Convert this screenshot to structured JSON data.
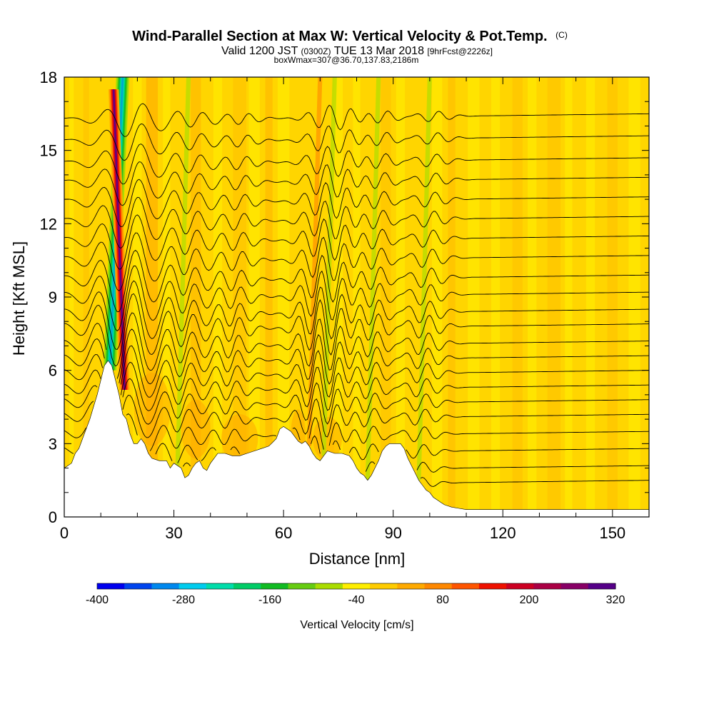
{
  "chart_data": {
    "type": "heatmap",
    "title": "Wind-Parallel Section at Max W: Vertical Velocity & Pot.Temp.",
    "title_mark": "(C)",
    "subtitle": {
      "prefix": "Valid 1200 JST",
      "utc": "(0300Z)",
      "date": "TUE 13 Mar 2018",
      "forecast": "[9hrFcst@2226z]"
    },
    "subtitle2": "boxWmax=307@36.70,137.83,2186m",
    "xlabel": "Distance [nm]",
    "ylabel": "Height [Kft MSL]",
    "xlim": [
      0,
      160
    ],
    "ylim": [
      0,
      18
    ],
    "x_ticks": [
      0,
      30,
      60,
      90,
      120,
      150
    ],
    "y_ticks": [
      0,
      3,
      6,
      9,
      12,
      15,
      18
    ],
    "colorbar": {
      "label": "Vertical Velocity [cm/s]",
      "tick_values": [
        -400,
        -280,
        -160,
        -40,
        80,
        200,
        320
      ],
      "tick_labels": [
        "-400",
        "-280",
        "-160",
        "-40",
        "80",
        "200",
        "320"
      ],
      "levels": [
        -400,
        -360,
        -320,
        -280,
        -240,
        -200,
        -160,
        -120,
        -80,
        -40,
        0,
        40,
        80,
        120,
        160,
        200,
        240,
        280,
        320
      ],
      "colors": [
        "#0000ee",
        "#0044ee",
        "#0088ee",
        "#00ccee",
        "#00ddaa",
        "#00cc66",
        "#11bb22",
        "#66cc11",
        "#aadd00",
        "#ffee00",
        "#ffcc00",
        "#ffaa00",
        "#ff8800",
        "#ff5500",
        "#ee1100",
        "#cc0022",
        "#aa0044",
        "#880066",
        "#550088"
      ]
    },
    "background_band": "#ffe600",
    "terrain": [
      [
        0,
        2
      ],
      [
        2,
        2.2
      ],
      [
        3,
        2.6
      ],
      [
        4,
        2.8
      ],
      [
        5,
        3.2
      ],
      [
        6,
        3.6
      ],
      [
        7,
        4.0
      ],
      [
        8,
        4.5
      ],
      [
        9,
        5.0
      ],
      [
        10,
        5.6
      ],
      [
        11,
        6.2
      ],
      [
        12,
        6.4
      ],
      [
        13,
        6.2
      ],
      [
        14,
        5.6
      ],
      [
        15,
        5.0
      ],
      [
        16,
        4.2
      ],
      [
        17,
        4.0
      ],
      [
        18,
        3.4
      ],
      [
        19,
        3.0
      ],
      [
        20,
        3.0
      ],
      [
        21,
        3.2
      ],
      [
        22,
        3.0
      ],
      [
        23,
        2.6
      ],
      [
        24,
        2.4
      ],
      [
        26,
        2.3
      ],
      [
        28,
        2.3
      ],
      [
        29,
        2.0
      ],
      [
        30,
        2.2
      ],
      [
        32,
        2.0
      ],
      [
        33,
        1.6
      ],
      [
        34,
        1.7
      ],
      [
        35,
        2.0
      ],
      [
        36,
        2.2
      ],
      [
        37,
        2.3
      ],
      [
        38,
        2.0
      ],
      [
        39,
        1.9
      ],
      [
        40,
        2.2
      ],
      [
        41,
        2.4
      ],
      [
        42,
        2.6
      ],
      [
        44,
        2.6
      ],
      [
        46,
        2.5
      ],
      [
        48,
        2.5
      ],
      [
        50,
        2.6
      ],
      [
        52,
        2.7
      ],
      [
        54,
        2.8
      ],
      [
        56,
        2.9
      ],
      [
        58,
        3.2
      ],
      [
        59,
        3.6
      ],
      [
        60,
        3.7
      ],
      [
        61,
        3.6
      ],
      [
        62,
        3.5
      ],
      [
        63,
        3.3
      ],
      [
        64,
        3.1
      ],
      [
        65,
        3.0
      ],
      [
        66,
        3.1
      ],
      [
        67,
        2.9
      ],
      [
        68,
        2.6
      ],
      [
        69,
        2.4
      ],
      [
        70,
        2.3
      ],
      [
        71,
        2.5
      ],
      [
        72,
        2.7
      ],
      [
        74,
        2.6
      ],
      [
        76,
        2.6
      ],
      [
        78,
        2.5
      ],
      [
        79,
        2.3
      ],
      [
        80,
        2.0
      ],
      [
        81,
        1.8
      ],
      [
        82,
        1.7
      ],
      [
        83,
        1.5
      ],
      [
        84,
        1.7
      ],
      [
        85,
        2.0
      ],
      [
        86,
        2.3
      ],
      [
        87,
        2.7
      ],
      [
        88,
        2.9
      ],
      [
        89,
        3.0
      ],
      [
        90,
        3.0
      ],
      [
        91,
        3.0
      ],
      [
        92,
        3.0
      ],
      [
        93,
        2.8
      ],
      [
        94,
        2.4
      ],
      [
        95,
        2.1
      ],
      [
        96,
        1.8
      ],
      [
        97,
        1.5
      ],
      [
        98,
        1.3
      ],
      [
        99,
        1.1
      ],
      [
        100,
        1.0
      ],
      [
        101,
        0.8
      ],
      [
        102,
        0.7
      ],
      [
        103,
        0.6
      ],
      [
        104,
        0.5
      ],
      [
        105,
        0.45
      ],
      [
        106,
        0.4
      ],
      [
        108,
        0.35
      ],
      [
        110,
        0.3
      ],
      [
        112,
        0.3
      ],
      [
        115,
        0.3
      ],
      [
        120,
        0.3
      ],
      [
        130,
        0.3
      ],
      [
        140,
        0.3
      ],
      [
        150,
        0.3
      ],
      [
        160,
        0.3
      ]
    ],
    "updraft_core": {
      "x_bottom": 16.5,
      "x_top": 13.5,
      "y_bottom": 5.2,
      "y_top": 17.5,
      "max_value": 307
    },
    "downdraft_core": {
      "x_bottom": 12.5,
      "x_top": 16.0,
      "y_bottom": 6.0,
      "y_top": 18.0,
      "min_value": -240
    },
    "wave_bands": [
      {
        "x": 31,
        "type": "downdraft"
      },
      {
        "x": 67,
        "type": "updraft"
      },
      {
        "x": 71,
        "type": "downdraft"
      },
      {
        "x": 83,
        "type": "downdraft"
      },
      {
        "x": 97,
        "type": "downdraft"
      }
    ],
    "theta_contours": {
      "count": 22,
      "base_heights": [
        1.2,
        1.8,
        2.5,
        3.2,
        3.9,
        4.5,
        5.1,
        5.7,
        6.3,
        6.9,
        7.6,
        8.2,
        8.9,
        9.6,
        10.4,
        11.2,
        12.0,
        12.8,
        13.6,
        14.4,
        15.3,
        16.2
      ],
      "color": "#000000"
    }
  }
}
